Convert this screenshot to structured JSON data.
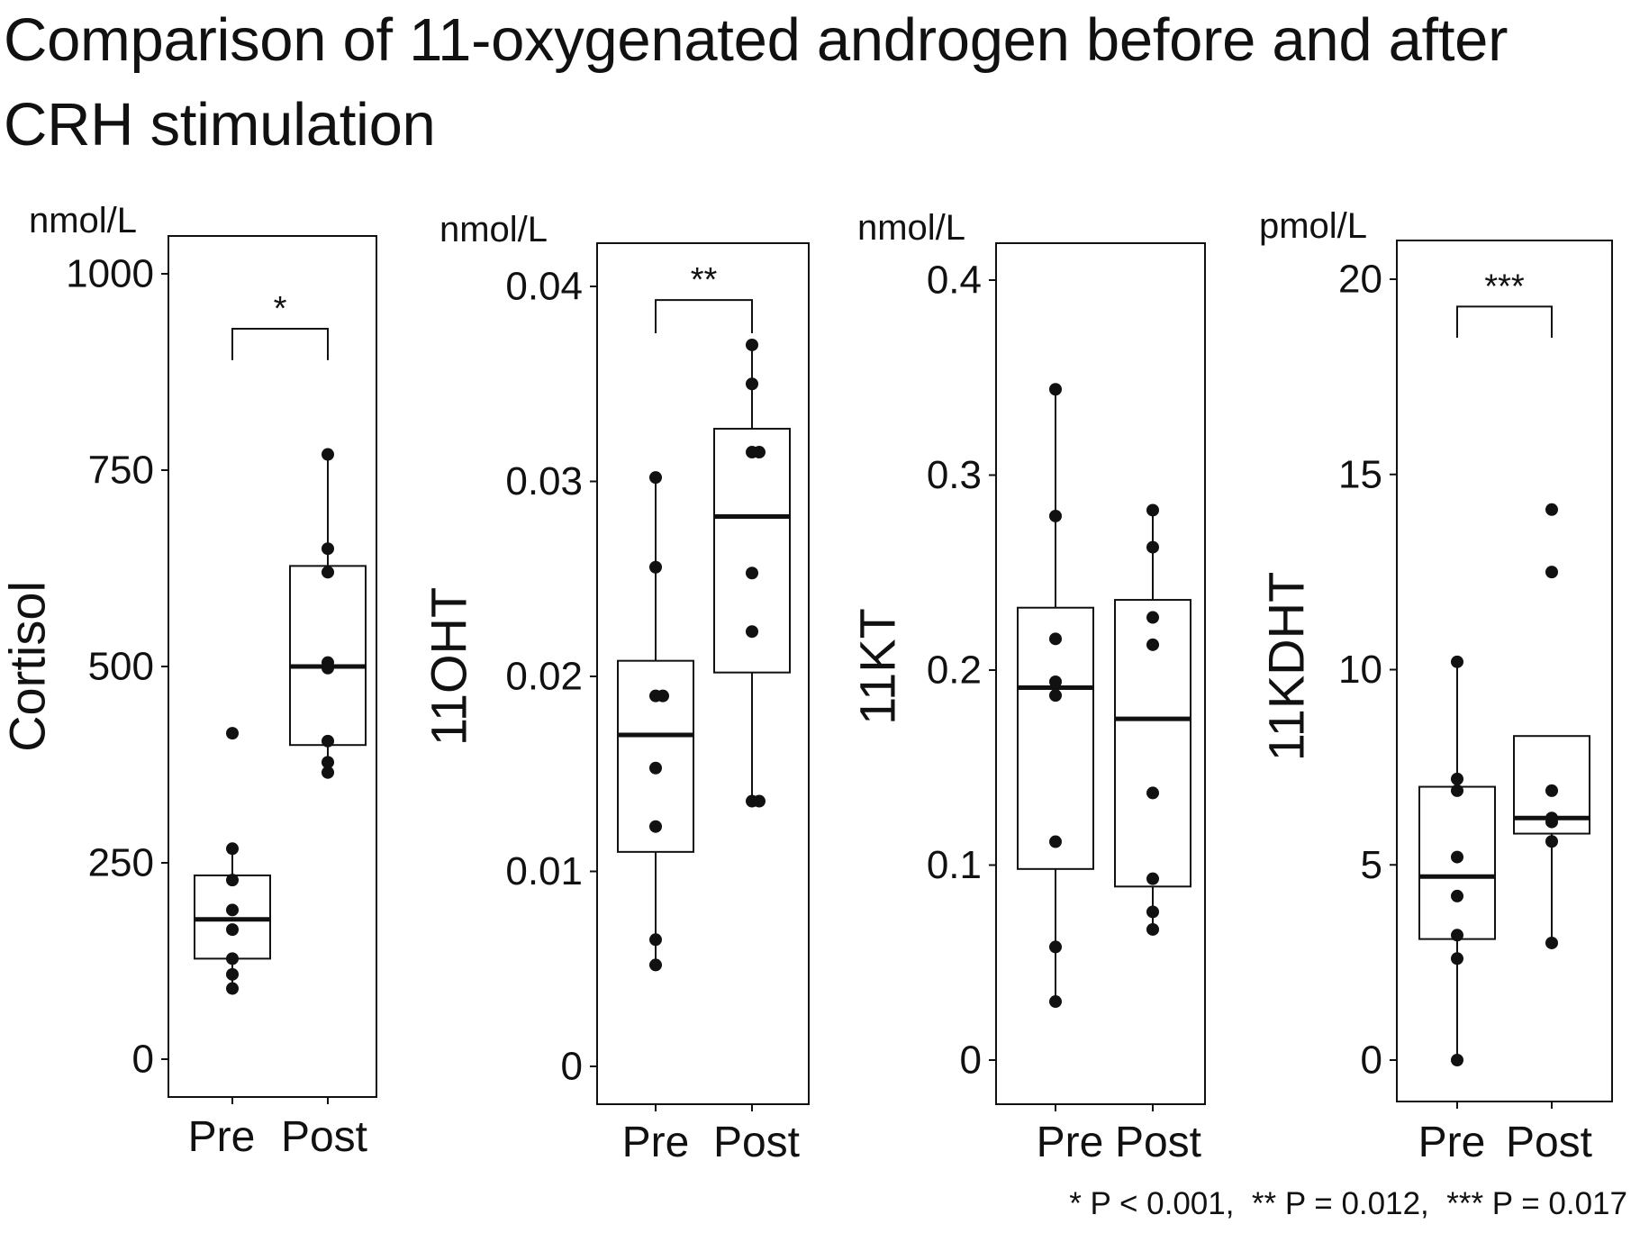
{
  "title": "Comparison of 11-oxygenated androgen before and after CRH stimulation",
  "footnote": "* P < 0.001,  ** P = 0.012,  *** P = 0.017",
  "colors": {
    "ink": "#111111",
    "box_fill": "#ffffff",
    "background": "#ffffff"
  },
  "chart_data": [
    {
      "type": "box",
      "ylabel": "Cortisol",
      "unit": "nmol/L",
      "categories": [
        "Pre",
        "Post"
      ],
      "ylim": [
        0,
        1000
      ],
      "yticks": [
        0,
        250,
        500,
        750,
        1000
      ],
      "tick_labels": [
        "0",
        "250",
        "500",
        "750",
        "1000"
      ],
      "boxes": [
        {
          "category": "Pre",
          "whisker_low": 90,
          "q1": 128,
          "median": 178,
          "q3": 234,
          "whisker_high": 268
        },
        {
          "category": "Post",
          "whisker_low": 365,
          "q1": 400,
          "median": 500,
          "q3": 628,
          "whisker_high": 770
        }
      ],
      "points": [
        {
          "category": "Pre",
          "values": [
            415,
            268,
            228,
            190,
            165,
            128,
            108,
            90
          ]
        },
        {
          "category": "Post",
          "values": [
            770,
            650,
            620,
            505,
            498,
            405,
            378,
            365
          ]
        }
      ],
      "significance": {
        "label": "*",
        "pair": [
          "Pre",
          "Post"
        ],
        "y": 930,
        "drop": 40
      }
    },
    {
      "type": "box",
      "ylabel": "11OHT",
      "unit": "nmol/L",
      "categories": [
        "Pre",
        "Post"
      ],
      "ylim": [
        0,
        0.04
      ],
      "yticks": [
        0,
        0.01,
        0.02,
        0.03,
        0.04
      ],
      "tick_labels": [
        "0",
        "0.01",
        "0.02",
        "0.03",
        "0.04"
      ],
      "boxes": [
        {
          "category": "Pre",
          "whisker_low": 0.0052,
          "q1": 0.011,
          "median": 0.017,
          "q3": 0.0208,
          "whisker_high": 0.0302
        },
        {
          "category": "Post",
          "whisker_low": 0.0136,
          "q1": 0.0202,
          "median": 0.0282,
          "q3": 0.0327,
          "whisker_high": 0.037
        }
      ],
      "points": [
        {
          "category": "Pre",
          "values": [
            0.0302,
            0.0256,
            0.019,
            0.019,
            0.0153,
            0.0123,
            0.0065,
            0.0052
          ]
        },
        {
          "category": "Post",
          "values": [
            0.037,
            0.035,
            0.0315,
            0.0315,
            0.0253,
            0.0223,
            0.0136,
            0.0136
          ]
        }
      ],
      "significance": {
        "label": "**",
        "pair": [
          "Pre",
          "Post"
        ],
        "y": 0.0393,
        "drop": 0.0017
      }
    },
    {
      "type": "box",
      "ylabel": "11KT",
      "unit": "nmol/L",
      "categories": [
        "Pre",
        "Post"
      ],
      "ylim": [
        0,
        0.4
      ],
      "yticks": [
        0,
        0.1,
        0.2,
        0.3,
        0.4
      ],
      "tick_labels": [
        "0",
        "0.1",
        "0.2",
        "0.3",
        "0.4"
      ],
      "boxes": [
        {
          "category": "Pre",
          "whisker_low": 0.03,
          "q1": 0.098,
          "median": 0.191,
          "q3": 0.232,
          "whisker_high": 0.344
        },
        {
          "category": "Post",
          "whisker_low": 0.067,
          "q1": 0.089,
          "median": 0.175,
          "q3": 0.236,
          "whisker_high": 0.282
        }
      ],
      "points": [
        {
          "category": "Pre",
          "values": [
            0.344,
            0.279,
            0.216,
            0.194,
            0.187,
            0.112,
            0.058,
            0.03
          ]
        },
        {
          "category": "Post",
          "values": [
            0.282,
            0.263,
            0.227,
            0.213,
            0.137,
            0.093,
            0.076,
            0.067
          ]
        }
      ],
      "significance": null
    },
    {
      "type": "box",
      "ylabel": "11KDHT",
      "unit": "pmol/L",
      "categories": [
        "Pre",
        "Post"
      ],
      "ylim": [
        0,
        20
      ],
      "yticks": [
        0,
        5,
        10,
        15,
        20
      ],
      "tick_labels": [
        "0",
        "5",
        "10",
        "15",
        "20"
      ],
      "boxes": [
        {
          "category": "Pre",
          "whisker_low": 0.0,
          "q1": 3.1,
          "median": 4.7,
          "q3": 7.0,
          "whisker_high": 10.2
        },
        {
          "category": "Post",
          "whisker_low": 3.0,
          "q1": 5.8,
          "median": 6.2,
          "q3": 8.3,
          "whisker_high": 8.3
        }
      ],
      "points": [
        {
          "category": "Pre",
          "values": [
            10.2,
            7.2,
            6.9,
            5.2,
            4.2,
            3.2,
            2.6,
            0.0
          ]
        },
        {
          "category": "Post",
          "values": [
            14.1,
            12.5,
            6.9,
            6.2,
            6.1,
            5.6,
            3.0
          ]
        }
      ],
      "significance": {
        "label": "***",
        "pair": [
          "Pre",
          "Post"
        ],
        "y": 19.3,
        "drop": 0.8
      }
    }
  ]
}
